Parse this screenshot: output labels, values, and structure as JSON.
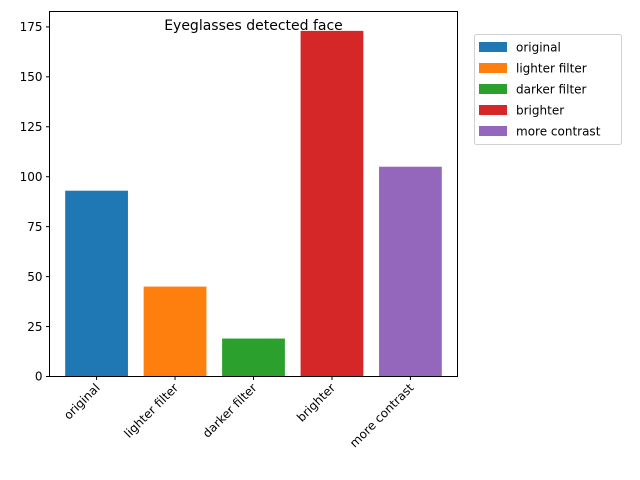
{
  "chart_data": {
    "type": "bar",
    "title": "Eyeglasses detected face",
    "xlabel": "",
    "ylabel": "",
    "categories": [
      "original",
      "lighter filter",
      "darker filter",
      "brighter",
      "more contrast"
    ],
    "values": [
      93,
      45,
      19,
      173,
      105
    ],
    "colors": [
      "#1f77b4",
      "#ff7f0e",
      "#2ca02c",
      "#d62728",
      "#9467bd"
    ],
    "ylim": [
      0,
      182.7
    ],
    "yticks": [
      0,
      25,
      50,
      75,
      100,
      125,
      150,
      175
    ],
    "grid": false,
    "legend": {
      "placement": "outside-top-right",
      "entries": [
        "original",
        "lighter filter",
        "darker filter",
        "brighter",
        "more contrast"
      ]
    }
  }
}
